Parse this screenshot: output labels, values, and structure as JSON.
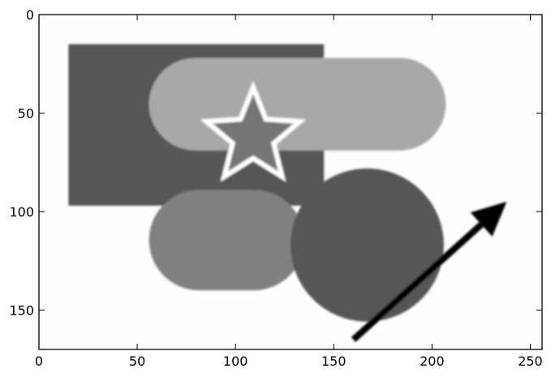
{
  "chart_data": {
    "type": "image",
    "title": "",
    "xlabel": "",
    "ylabel": "",
    "xlim": [
      0,
      256
    ],
    "ylim": [
      170,
      0
    ],
    "y_axis_inverted": true,
    "grid": false,
    "x_ticks": [
      0,
      50,
      100,
      150,
      200,
      250
    ],
    "y_ticks": [
      0,
      50,
      100,
      150
    ],
    "image": {
      "background_color": "#fdfdfd",
      "shapes": [
        {
          "kind": "rectangle",
          "x": [
            15,
            145
          ],
          "y": [
            15,
            97
          ],
          "color": "#565656"
        },
        {
          "kind": "rounded-rectangle",
          "x": [
            56,
            207
          ],
          "y": [
            22,
            69
          ],
          "color": "#a8a8a8"
        },
        {
          "kind": "rounded-rectangle",
          "x": [
            56,
            135
          ],
          "y": [
            89,
            140
          ],
          "color": "#808080"
        },
        {
          "kind": "star",
          "center": [
            109,
            62
          ],
          "outer_radius": 25,
          "inner_radius": 11,
          "fill": "#747474",
          "outline": "#ffffff"
        },
        {
          "kind": "circle",
          "center": [
            167,
            117
          ],
          "radius": 39,
          "color": "#575757"
        },
        {
          "kind": "arrow",
          "from": [
            160,
            165
          ],
          "to": [
            238,
            95
          ],
          "color": "#000000"
        }
      ]
    }
  }
}
